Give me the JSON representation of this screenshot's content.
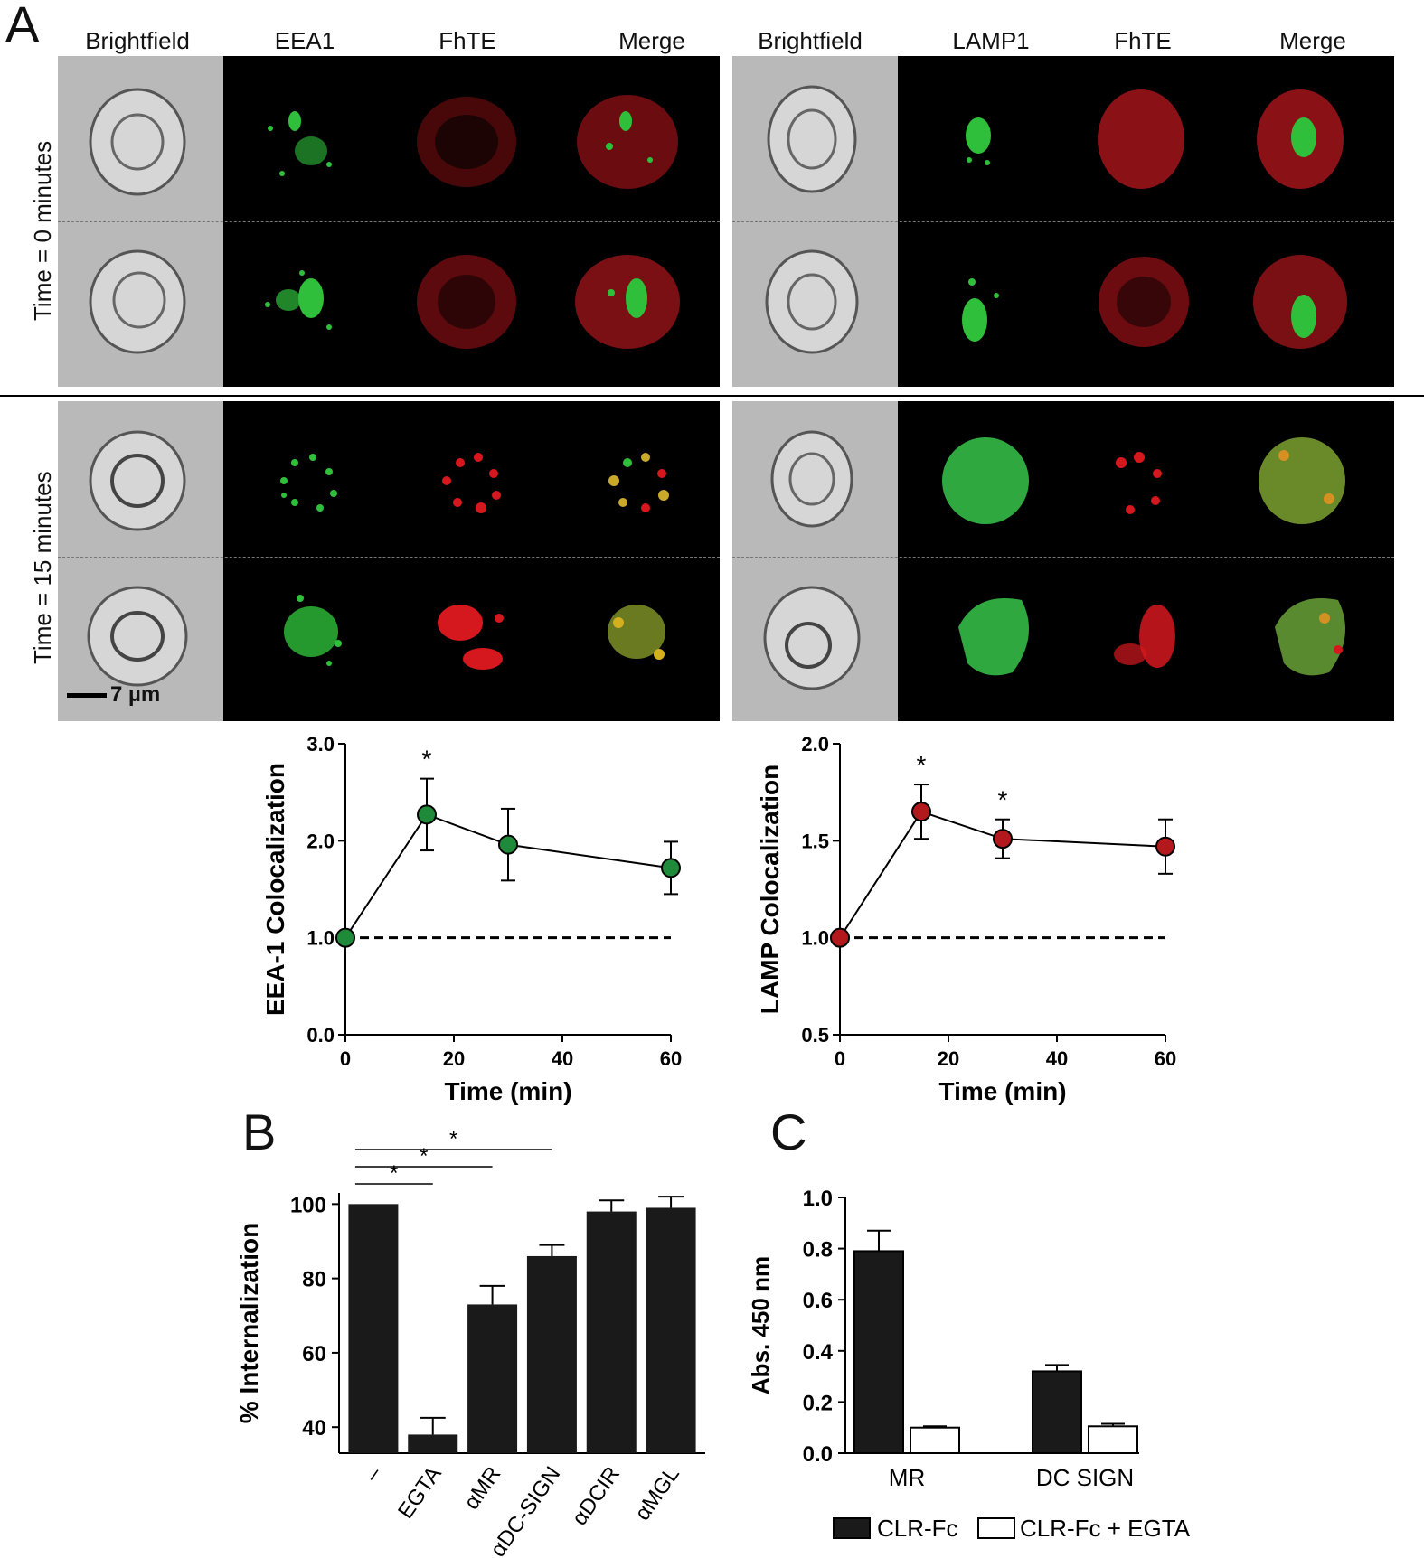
{
  "panel_labels": {
    "a": "A",
    "b": "B",
    "c": "C"
  },
  "microscopy": {
    "left_headers": [
      "Brightfield",
      "EEA1",
      "FhTE",
      "Merge"
    ],
    "right_headers": [
      "Brightfield",
      "LAMP1",
      "FhTE",
      "Merge"
    ],
    "row_labels": [
      "Time = 0 minutes",
      "Time = 15 minutes"
    ],
    "scale_bar": "7 µm",
    "colors": {
      "green": "#2fbf3a",
      "red": "#c8161c",
      "merge": "#b8a020"
    }
  },
  "chart_data": [
    {
      "type": "line",
      "xlabel": "Time (min)",
      "ylabel": "EEA-1 Colocalization",
      "x": [
        0,
        15,
        30,
        60
      ],
      "y": [
        1.0,
        2.27,
        1.96,
        1.72
      ],
      "err": [
        0,
        0.37,
        0.37,
        0.27
      ],
      "xlim": [
        0,
        60
      ],
      "ylim": [
        0,
        3.0
      ],
      "xticks": [
        "0",
        "20",
        "40",
        "60"
      ],
      "yticks": [
        "0.0",
        "1.0",
        "2.0",
        "3.0"
      ],
      "baseline": 1.0,
      "annotations": [
        {
          "x": 15,
          "text": "*"
        }
      ],
      "marker_color": "#1f8a3a"
    },
    {
      "type": "line",
      "xlabel": "Time (min)",
      "ylabel": "LAMP Colocalization",
      "x": [
        0,
        15,
        30,
        60
      ],
      "y": [
        1.0,
        1.65,
        1.51,
        1.47
      ],
      "err": [
        0,
        0.14,
        0.1,
        0.14
      ],
      "xlim": [
        0,
        60
      ],
      "ylim": [
        0.5,
        2.0
      ],
      "xticks": [
        "0",
        "20",
        "40",
        "60"
      ],
      "yticks": [
        "0.5",
        "1.0",
        "1.5",
        "2.0"
      ],
      "baseline": 1.0,
      "annotations": [
        {
          "x": 15,
          "text": "*"
        },
        {
          "x": 30,
          "text": "*"
        }
      ],
      "marker_color": "#b3181c"
    },
    {
      "type": "bar",
      "ylabel": "% Internalization",
      "categories": [
        "–",
        "EGTA",
        "αMR",
        "αDC-SIGN",
        "αDCIR",
        "αMGL"
      ],
      "values": [
        100,
        38,
        73,
        86,
        98,
        99
      ],
      "err": [
        0,
        4.5,
        5,
        3,
        3,
        3
      ],
      "ylim": [
        33,
        103
      ],
      "yticks": [
        "40",
        "60",
        "80",
        "100"
      ],
      "significance": [
        {
          "from": "–",
          "to": "EGTA",
          "text": "*"
        },
        {
          "from": "–",
          "to": "αMR",
          "text": "*"
        },
        {
          "from": "–",
          "to": "αDC-SIGN",
          "text": "*"
        }
      ],
      "bar_color": "#1a1a1a"
    },
    {
      "type": "bar",
      "ylabel": "Abs. 450 nm",
      "categories": [
        "MR",
        "DC SIGN"
      ],
      "series": [
        {
          "name": "CLR-Fc",
          "values": [
            0.79,
            0.32
          ],
          "err": [
            0.08,
            0.025
          ],
          "color": "#1a1a1a"
        },
        {
          "name": "CLR-Fc + EGTA",
          "values": [
            0.1,
            0.105
          ],
          "err": [
            0.005,
            0.01
          ],
          "color": "#ffffff"
        }
      ],
      "ylim": [
        0,
        1.0
      ],
      "yticks": [
        "0.0",
        "0.2",
        "0.4",
        "0.6",
        "0.8",
        "1.0"
      ],
      "legend": "bottom"
    }
  ]
}
